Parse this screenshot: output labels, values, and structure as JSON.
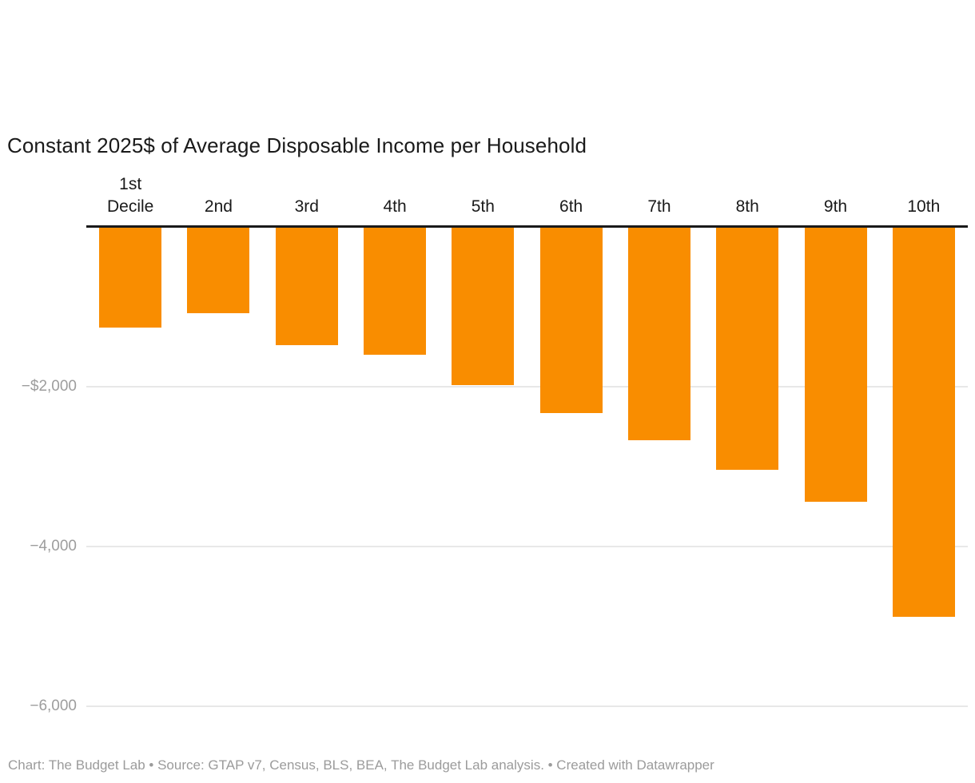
{
  "chart": {
    "title": "Constant 2025$ of Average Disposable Income per Household",
    "footer": "Chart: The Budget Lab • Source: GTAP v7, Census, BLS, BEA, The Budget Lab analysis. • Created with Datawrapper"
  },
  "chart_data": {
    "type": "bar",
    "title": "Constant 2025$ of Average Disposable Income per Household",
    "categories": [
      "1st\nDecile",
      "2nd",
      "3rd",
      "4th",
      "5th",
      "6th",
      "7th",
      "8th",
      "9th",
      "10th"
    ],
    "values": [
      -1260,
      -1080,
      -1480,
      -1600,
      -1980,
      -2330,
      -2670,
      -3040,
      -3440,
      -4880
    ],
    "xlabel": "",
    "ylabel": "",
    "ylim": [
      -6600,
      0
    ],
    "yticks": [
      {
        "value": -2000,
        "label": "−$2,000"
      },
      {
        "value": -4000,
        "label": "−4,000"
      },
      {
        "value": -6000,
        "label": "−6,000"
      }
    ],
    "grid": true,
    "legend": false,
    "orientation": "vertical-negative",
    "bar_color": "#f98d00",
    "axis_color": "#1a1a1a",
    "gridline_color": "#e8e8e8",
    "tick_label_color": "#9d9d9d",
    "source_note": "Chart: The Budget Lab • Source: GTAP v7, Census, BLS, BEA, The Budget Lab analysis. • Created with Datawrapper"
  }
}
